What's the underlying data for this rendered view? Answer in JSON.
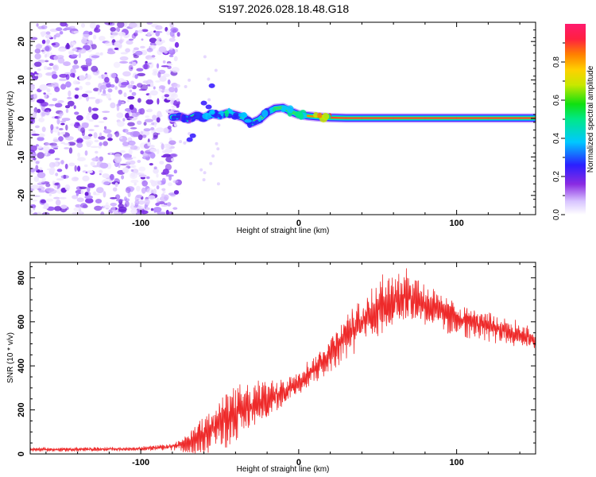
{
  "figure_title": "S197.2026.028.18.48.G18",
  "colors": {
    "snr_line": "#ee2a2a",
    "spectrogram_noise": "#8a2be2",
    "track_core": "#ff2a3a"
  },
  "chart_data": [
    {
      "type": "heatmap",
      "title": "S197.2026.028.18.48.G18",
      "xlabel": "Height of straight line (km)",
      "ylabel": "Frequency (Hz)",
      "xlim": [
        -170,
        150
      ],
      "ylim": [
        -25,
        25
      ],
      "x_ticks": [
        -100,
        0,
        100
      ],
      "x_tick_labels": [
        "-100",
        "0",
        "100"
      ],
      "y_ticks": [
        -20,
        -10,
        0,
        10,
        20
      ],
      "y_tick_labels": [
        "-20",
        "-10",
        "0",
        "10",
        "20"
      ],
      "noise_region_x": [
        -170,
        -80
      ],
      "track": {
        "height_km": [
          -80,
          -75,
          -70,
          -65,
          -60,
          -55,
          -50,
          -45,
          -40,
          -35,
          -30,
          -25,
          -20,
          -15,
          -10,
          -5,
          0,
          5,
          10,
          15,
          20,
          30,
          40,
          60,
          80,
          100,
          120,
          140,
          150
        ],
        "frequency_hz": [
          0.3,
          0.5,
          -0.2,
          0.8,
          0.2,
          1.2,
          0.8,
          1.4,
          0.9,
          0.3,
          -1.2,
          -0.3,
          1.5,
          2.6,
          2.8,
          1.8,
          1.0,
          0.7,
          0.5,
          0.3,
          0.2,
          0.1,
          0.1,
          0.1,
          0.1,
          0.1,
          0.1,
          0.1,
          0.1
        ],
        "amplitude": [
          0.3,
          0.4,
          0.35,
          0.4,
          0.45,
          0.5,
          0.55,
          0.6,
          0.55,
          0.5,
          0.45,
          0.5,
          0.55,
          0.6,
          0.6,
          0.65,
          0.7,
          0.8,
          0.9,
          0.95,
          1.0,
          1.0,
          1.0,
          1.0,
          1.0,
          1.0,
          1.0,
          1.0,
          1.0
        ]
      },
      "colorbar": {
        "label": "Normalized spectral amplitude",
        "range": [
          0,
          1
        ],
        "ticks": [
          0.0,
          0.2,
          0.4,
          0.6,
          0.8
        ],
        "tick_labels": [
          "0.0",
          "0.2",
          "0.4",
          "0.6",
          "0.8"
        ]
      }
    },
    {
      "type": "line",
      "xlabel": "Height of straight line (km)",
      "ylabel": "SNR (10 * v/v)",
      "xlim": [
        -170,
        150
      ],
      "ylim": [
        0,
        870
      ],
      "x_ticks": [
        -100,
        0,
        100
      ],
      "x_tick_labels": [
        "-100",
        "0",
        "100"
      ],
      "y_ticks": [
        0,
        200,
        400,
        600,
        800
      ],
      "y_tick_labels": [
        "0",
        "200",
        "400",
        "600",
        "800"
      ],
      "series": [
        {
          "name": "SNR",
          "x": [
            -170,
            -150,
            -130,
            -110,
            -95,
            -85,
            -80,
            -75,
            -70,
            -65,
            -60,
            -55,
            -50,
            -45,
            -40,
            -35,
            -30,
            -25,
            -20,
            -15,
            -10,
            -5,
            0,
            5,
            10,
            15,
            20,
            25,
            30,
            35,
            40,
            45,
            50,
            55,
            60,
            65,
            70,
            75,
            80,
            85,
            90,
            95,
            100,
            110,
            120,
            130,
            140,
            150
          ],
          "y": [
            20,
            20,
            22,
            22,
            25,
            30,
            35,
            40,
            50,
            70,
            100,
            120,
            140,
            160,
            180,
            200,
            210,
            225,
            240,
            260,
            280,
            300,
            330,
            360,
            390,
            420,
            460,
            500,
            540,
            570,
            600,
            630,
            660,
            680,
            700,
            710,
            710,
            700,
            680,
            660,
            650,
            630,
            620,
            600,
            580,
            560,
            540,
            520
          ],
          "amplitude": [
            10,
            10,
            10,
            10,
            12,
            15,
            20,
            30,
            50,
            80,
            110,
            120,
            130,
            140,
            140,
            130,
            120,
            110,
            100,
            90,
            80,
            75,
            70,
            70,
            75,
            80,
            90,
            100,
            110,
            120,
            130,
            140,
            150,
            150,
            145,
            140,
            130,
            120,
            110,
            100,
            95,
            90,
            85,
            80,
            75,
            70,
            65,
            60
          ]
        }
      ]
    }
  ]
}
